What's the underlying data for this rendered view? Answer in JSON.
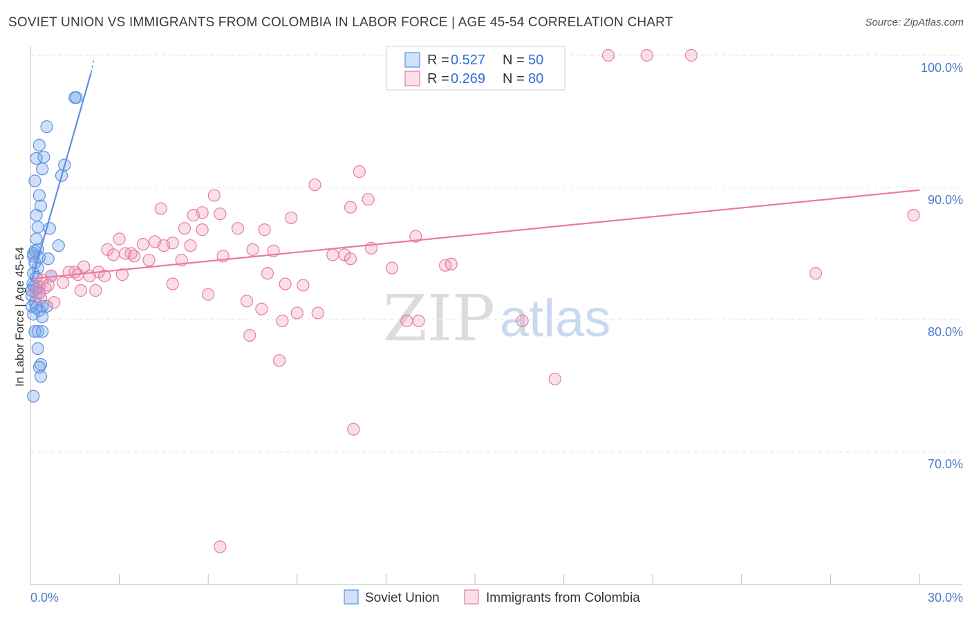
{
  "title": "SOVIET UNION VS IMMIGRANTS FROM COLOMBIA IN LABOR FORCE | AGE 45-54 CORRELATION CHART",
  "source": "Source: ZipAtlas.com",
  "watermark": {
    "zip": "ZIP",
    "atlas": "atlas"
  },
  "legend": {
    "r_label": "R =",
    "n_label": "N =",
    "rows": [
      {
        "r": "0.527",
        "n": "50",
        "color": "#5b8fde"
      },
      {
        "r": "0.269",
        "n": "80",
        "color": "#e87aa0"
      }
    ]
  },
  "bottom_legend": [
    "Soviet Union",
    "Immigrants from Colombia"
  ],
  "chart_data": {
    "type": "scatter",
    "title": "SOVIET UNION VS IMMIGRANTS FROM COLOMBIA IN LABOR FORCE | AGE 45-54 CORRELATION CHART",
    "xlabel": "",
    "ylabel": "In Labor Force | Age 45-54",
    "xlim": [
      0,
      30
    ],
    "ylim": [
      60,
      101
    ],
    "x_tick_labels": [
      {
        "value": 0,
        "label": "0.0%"
      },
      {
        "value": 30,
        "label": "30.0%"
      }
    ],
    "y_ticks": [
      {
        "value": 70,
        "label": "70.0%"
      },
      {
        "value": 80,
        "label": "80.0%"
      },
      {
        "value": 90,
        "label": "90.0%"
      },
      {
        "value": 100,
        "label": "100.0%"
      }
    ],
    "series": [
      {
        "name": "Soviet Union",
        "color": "#5b8fde",
        "fill": "rgba(120,165,235,0.35)",
        "trend": {
          "x": [
            0.05,
            2.05
          ],
          "y": [
            83.0,
            98.7
          ],
          "dash_to": [
            2.15,
            99.8
          ]
        },
        "points": [
          [
            1.5,
            96.8
          ],
          [
            1.55,
            96.8
          ],
          [
            0.55,
            94.6
          ],
          [
            0.3,
            93.2
          ],
          [
            0.45,
            92.3
          ],
          [
            0.2,
            92.2
          ],
          [
            0.4,
            91.4
          ],
          [
            1.15,
            91.7
          ],
          [
            1.05,
            90.9
          ],
          [
            0.15,
            90.5
          ],
          [
            0.3,
            89.4
          ],
          [
            0.35,
            88.6
          ],
          [
            0.2,
            87.9
          ],
          [
            0.25,
            87.0
          ],
          [
            0.65,
            86.9
          ],
          [
            0.2,
            86.1
          ],
          [
            0.95,
            85.6
          ],
          [
            0.25,
            85.3
          ],
          [
            0.15,
            85.2
          ],
          [
            0.1,
            84.8
          ],
          [
            0.3,
            84.7
          ],
          [
            0.6,
            84.6
          ],
          [
            0.15,
            84.3
          ],
          [
            0.25,
            83.9
          ],
          [
            0.1,
            83.5
          ],
          [
            0.7,
            83.3
          ],
          [
            0.08,
            82.7
          ],
          [
            0.12,
            82.5
          ],
          [
            0.2,
            82.3
          ],
          [
            0.05,
            81.8
          ],
          [
            0.15,
            81.3
          ],
          [
            0.05,
            81.0
          ],
          [
            0.4,
            81.0
          ],
          [
            0.55,
            81.0
          ],
          [
            0.3,
            80.7
          ],
          [
            0.1,
            80.4
          ],
          [
            0.4,
            80.2
          ],
          [
            0.15,
            79.1
          ],
          [
            0.25,
            79.1
          ],
          [
            0.4,
            79.1
          ],
          [
            0.25,
            77.8
          ],
          [
            0.35,
            76.6
          ],
          [
            0.3,
            76.4
          ],
          [
            0.35,
            75.7
          ],
          [
            0.1,
            74.2
          ],
          [
            0.05,
            82.2
          ],
          [
            0.2,
            83.2
          ],
          [
            0.1,
            85.0
          ],
          [
            0.2,
            80.9
          ],
          [
            0.3,
            82.0
          ]
        ]
      },
      {
        "name": "Immigrants from Colombia",
        "color": "#e87aa0",
        "fill": "rgba(240,150,185,0.3)",
        "trend": {
          "x": [
            0.1,
            30.0
          ],
          "y": [
            83.1,
            89.8
          ]
        },
        "points": [
          [
            19.5,
            100
          ],
          [
            20.8,
            100
          ],
          [
            22.3,
            100
          ],
          [
            29.8,
            87.9
          ],
          [
            26.5,
            83.5
          ],
          [
            11.1,
            91.2
          ],
          [
            9.6,
            90.2
          ],
          [
            6.2,
            89.4
          ],
          [
            11.4,
            89.1
          ],
          [
            10.8,
            88.5
          ],
          [
            4.4,
            88.4
          ],
          [
            5.8,
            88.1
          ],
          [
            6.4,
            88.0
          ],
          [
            5.5,
            87.9
          ],
          [
            8.8,
            87.7
          ],
          [
            5.2,
            86.9
          ],
          [
            7.0,
            86.9
          ],
          [
            5.8,
            86.8
          ],
          [
            7.9,
            86.8
          ],
          [
            13.0,
            86.3
          ],
          [
            3.0,
            86.1
          ],
          [
            4.8,
            85.8
          ],
          [
            4.2,
            85.9
          ],
          [
            3.8,
            85.7
          ],
          [
            4.5,
            85.6
          ],
          [
            5.4,
            85.6
          ],
          [
            2.6,
            85.3
          ],
          [
            7.5,
            85.3
          ],
          [
            8.2,
            85.2
          ],
          [
            11.5,
            85.4
          ],
          [
            3.4,
            85.0
          ],
          [
            3.2,
            85.0
          ],
          [
            2.8,
            84.9
          ],
          [
            3.5,
            84.8
          ],
          [
            4.0,
            84.5
          ],
          [
            6.5,
            84.8
          ],
          [
            10.2,
            84.9
          ],
          [
            10.6,
            84.9
          ],
          [
            10.8,
            84.6
          ],
          [
            5.1,
            84.5
          ],
          [
            14.0,
            84.1
          ],
          [
            12.2,
            83.9
          ],
          [
            1.8,
            84.0
          ],
          [
            1.3,
            83.6
          ],
          [
            1.5,
            83.6
          ],
          [
            2.3,
            83.6
          ],
          [
            2.0,
            83.3
          ],
          [
            1.6,
            83.4
          ],
          [
            3.1,
            83.4
          ],
          [
            8.0,
            83.5
          ],
          [
            0.7,
            83.3
          ],
          [
            0.4,
            83.0
          ],
          [
            1.1,
            82.8
          ],
          [
            2.5,
            83.3
          ],
          [
            4.8,
            82.7
          ],
          [
            8.6,
            82.7
          ],
          [
            9.2,
            82.6
          ],
          [
            0.5,
            82.4
          ],
          [
            0.3,
            82.5
          ],
          [
            0.2,
            82.0
          ],
          [
            1.7,
            82.2
          ],
          [
            2.2,
            82.2
          ],
          [
            6.0,
            81.9
          ],
          [
            7.3,
            81.4
          ],
          [
            0.8,
            81.3
          ],
          [
            7.8,
            80.8
          ],
          [
            9.0,
            80.5
          ],
          [
            9.7,
            80.5
          ],
          [
            13.1,
            79.9
          ],
          [
            16.6,
            79.9
          ],
          [
            8.5,
            79.9
          ],
          [
            7.4,
            78.8
          ],
          [
            8.4,
            76.9
          ],
          [
            17.7,
            75.5
          ],
          [
            10.9,
            71.7
          ],
          [
            6.4,
            62.8
          ],
          [
            12.7,
            79.9
          ],
          [
            0.35,
            81.6
          ],
          [
            14.2,
            84.2
          ],
          [
            0.6,
            82.6
          ]
        ]
      }
    ]
  }
}
